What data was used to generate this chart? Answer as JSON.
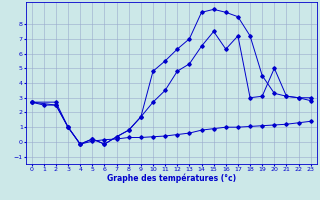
{
  "xlabel": "Graphe des températures (°c)",
  "bg_color": "#cce8e8",
  "grid_color": "#99aacc",
  "line_color": "#0000cc",
  "xlim": [
    -0.5,
    23.5
  ],
  "ylim": [
    -1.5,
    9.5
  ],
  "xticks": [
    0,
    1,
    2,
    3,
    4,
    5,
    6,
    7,
    8,
    9,
    10,
    11,
    12,
    13,
    14,
    15,
    16,
    17,
    18,
    19,
    20,
    21,
    22,
    23
  ],
  "yticks": [
    -1,
    0,
    1,
    2,
    3,
    4,
    5,
    6,
    7,
    8
  ],
  "line1_x": [
    0,
    1,
    2,
    3,
    4,
    5,
    6,
    7,
    8,
    9,
    10,
    11,
    12,
    13,
    14,
    15,
    16,
    17,
    18,
    19,
    20,
    21,
    22,
    23
  ],
  "line1_y": [
    2.7,
    2.5,
    2.5,
    1.0,
    -0.15,
    0.05,
    0.15,
    0.2,
    0.3,
    0.3,
    0.35,
    0.4,
    0.5,
    0.6,
    0.8,
    0.9,
    1.0,
    1.0,
    1.05,
    1.1,
    1.15,
    1.2,
    1.3,
    1.4
  ],
  "line2_x": [
    0,
    2,
    3,
    4,
    5,
    6,
    7,
    8,
    9,
    10,
    11,
    12,
    13,
    14,
    15,
    16,
    17,
    18,
    19,
    20,
    21,
    22,
    23
  ],
  "line2_y": [
    2.7,
    2.5,
    1.0,
    -0.15,
    0.2,
    -0.15,
    0.35,
    0.8,
    1.7,
    2.7,
    3.5,
    4.8,
    5.3,
    6.5,
    7.5,
    6.3,
    7.2,
    3.0,
    3.1,
    5.0,
    3.1,
    3.0,
    2.8
  ],
  "line3_x": [
    0,
    2,
    3,
    4,
    5,
    6,
    7,
    8,
    9,
    10,
    11,
    12,
    13,
    14,
    15,
    16,
    17,
    18,
    19,
    20,
    21,
    22,
    23
  ],
  "line3_y": [
    2.7,
    2.7,
    1.0,
    -0.15,
    0.2,
    -0.15,
    0.35,
    0.8,
    1.7,
    4.8,
    5.5,
    6.3,
    7.0,
    8.8,
    9.0,
    8.8,
    8.5,
    7.2,
    4.5,
    3.3,
    3.1,
    3.0,
    3.0
  ]
}
